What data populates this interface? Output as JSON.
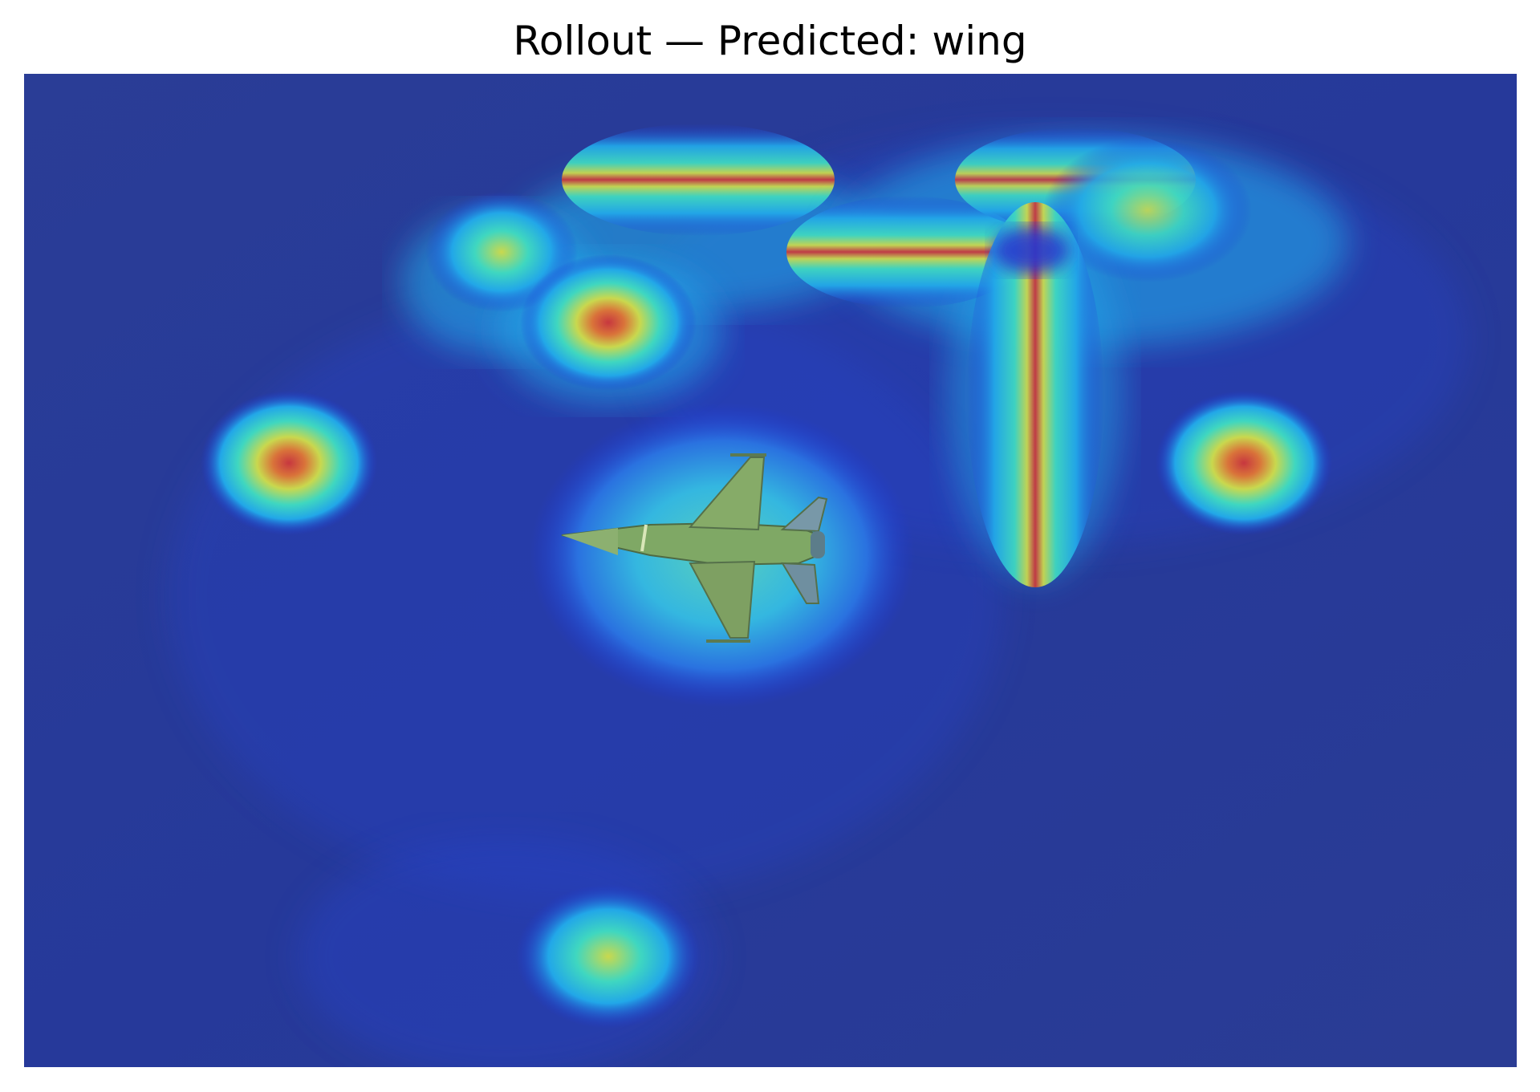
{
  "figure": {
    "title": "Rollout — Predicted: wing"
  },
  "overlay": {
    "base_color": "#2a3d96",
    "colormap": [
      "#1f35d8",
      "#22a7e8",
      "#3fd7c0",
      "#c9d84e",
      "#e3a137",
      "#c7373f"
    ]
  }
}
